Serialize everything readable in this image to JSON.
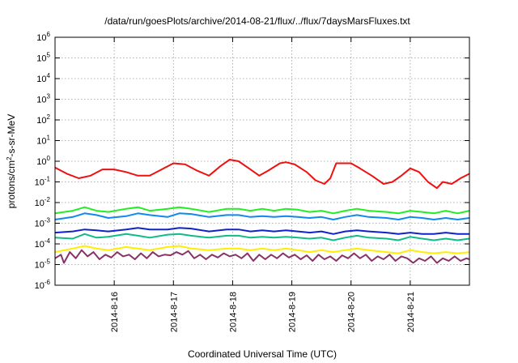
{
  "chart_data": {
    "type": "line",
    "title": "/data/run/goesPlots/archive/2014-08-21/flux/../flux/7daysMarsFluxes.txt",
    "xlabel": "Coordinated Universal Time (UTC)",
    "ylabel": "protons/cm²-s-sr-MeV",
    "yscale": "log",
    "ylim": [
      1e-06,
      1000000.0
    ],
    "y_ticks": [
      {
        "base": "10",
        "exp": "-6"
      },
      {
        "base": "10",
        "exp": "-5"
      },
      {
        "base": "10",
        "exp": "-4"
      },
      {
        "base": "10",
        "exp": "-3"
      },
      {
        "base": "10",
        "exp": "-2"
      },
      {
        "base": "10",
        "exp": "-1"
      },
      {
        "base": "10",
        "exp": "0"
      },
      {
        "base": "10",
        "exp": "1"
      },
      {
        "base": "10",
        "exp": "2"
      },
      {
        "base": "10",
        "exp": "3"
      },
      {
        "base": "10",
        "exp": "4"
      },
      {
        "base": "10",
        "exp": "5"
      },
      {
        "base": "10",
        "exp": "6"
      }
    ],
    "xlim_days": [
      15.0,
      22.0
    ],
    "x_ticks": [
      {
        "day": 16,
        "label": "2014-8-16"
      },
      {
        "day": 17,
        "label": "2014-8-17"
      },
      {
        "day": 18,
        "label": "2014-8-18"
      },
      {
        "day": 19,
        "label": "2014-8-19"
      },
      {
        "day": 20,
        "label": "2014-8-20"
      },
      {
        "day": 21,
        "label": "2014-8-21"
      }
    ],
    "grid": true,
    "series": [
      {
        "color": "#ee1111",
        "points": [
          [
            15.0,
            0.5
          ],
          [
            15.2,
            0.25
          ],
          [
            15.4,
            0.15
          ],
          [
            15.6,
            0.2
          ],
          [
            15.8,
            0.4
          ],
          [
            16.0,
            0.4
          ],
          [
            16.2,
            0.3
          ],
          [
            16.4,
            0.2
          ],
          [
            16.6,
            0.2
          ],
          [
            16.8,
            0.4
          ],
          [
            17.0,
            0.8
          ],
          [
            17.2,
            0.7
          ],
          [
            17.4,
            0.35
          ],
          [
            17.6,
            0.2
          ],
          [
            17.8,
            0.6
          ],
          [
            17.95,
            1.2
          ],
          [
            18.1,
            1.0
          ],
          [
            18.3,
            0.4
          ],
          [
            18.45,
            0.2
          ],
          [
            18.6,
            0.35
          ],
          [
            18.8,
            0.8
          ],
          [
            18.9,
            0.9
          ],
          [
            19.05,
            0.7
          ],
          [
            19.25,
            0.3
          ],
          [
            19.4,
            0.12
          ],
          [
            19.55,
            0.08
          ],
          [
            19.65,
            0.15
          ],
          [
            19.75,
            0.8
          ],
          [
            20.0,
            0.8
          ],
          [
            20.15,
            0.45
          ],
          [
            20.35,
            0.2
          ],
          [
            20.55,
            0.08
          ],
          [
            20.7,
            0.1
          ],
          [
            20.85,
            0.2
          ],
          [
            21.0,
            0.45
          ],
          [
            21.15,
            0.3
          ],
          [
            21.3,
            0.1
          ],
          [
            21.45,
            0.05
          ],
          [
            21.55,
            0.1
          ],
          [
            21.7,
            0.08
          ],
          [
            21.85,
            0.15
          ],
          [
            22.0,
            0.25
          ]
        ]
      },
      {
        "color": "#22ee22",
        "points": [
          [
            15.0,
            0.003
          ],
          [
            15.3,
            0.004
          ],
          [
            15.5,
            0.006
          ],
          [
            15.7,
            0.004
          ],
          [
            15.9,
            0.0035
          ],
          [
            16.2,
            0.005
          ],
          [
            16.4,
            0.006
          ],
          [
            16.6,
            0.004
          ],
          [
            16.9,
            0.005
          ],
          [
            17.1,
            0.006
          ],
          [
            17.3,
            0.005
          ],
          [
            17.6,
            0.0035
          ],
          [
            17.9,
            0.005
          ],
          [
            18.1,
            0.005
          ],
          [
            18.3,
            0.004
          ],
          [
            18.5,
            0.005
          ],
          [
            18.7,
            0.004
          ],
          [
            18.9,
            0.005
          ],
          [
            19.1,
            0.0045
          ],
          [
            19.3,
            0.0035
          ],
          [
            19.5,
            0.004
          ],
          [
            19.7,
            0.003
          ],
          [
            19.9,
            0.004
          ],
          [
            20.1,
            0.005
          ],
          [
            20.3,
            0.004
          ],
          [
            20.6,
            0.0035
          ],
          [
            20.8,
            0.003
          ],
          [
            21.0,
            0.004
          ],
          [
            21.2,
            0.0035
          ],
          [
            21.4,
            0.003
          ],
          [
            21.6,
            0.004
          ],
          [
            21.8,
            0.003
          ],
          [
            22.0,
            0.004
          ]
        ]
      },
      {
        "color": "#1188ee",
        "points": [
          [
            15.0,
            0.0015
          ],
          [
            15.3,
            0.002
          ],
          [
            15.5,
            0.003
          ],
          [
            15.7,
            0.0025
          ],
          [
            15.9,
            0.0018
          ],
          [
            16.2,
            0.0022
          ],
          [
            16.4,
            0.003
          ],
          [
            16.6,
            0.0025
          ],
          [
            16.9,
            0.002
          ],
          [
            17.1,
            0.003
          ],
          [
            17.3,
            0.0028
          ],
          [
            17.6,
            0.002
          ],
          [
            17.9,
            0.0025
          ],
          [
            18.1,
            0.0025
          ],
          [
            18.3,
            0.002
          ],
          [
            18.5,
            0.0022
          ],
          [
            18.7,
            0.002
          ],
          [
            18.9,
            0.0022
          ],
          [
            19.1,
            0.002
          ],
          [
            19.3,
            0.0018
          ],
          [
            19.5,
            0.002
          ],
          [
            19.7,
            0.0015
          ],
          [
            19.9,
            0.002
          ],
          [
            20.1,
            0.0025
          ],
          [
            20.3,
            0.002
          ],
          [
            20.6,
            0.0018
          ],
          [
            20.8,
            0.0015
          ],
          [
            21.0,
            0.002
          ],
          [
            21.2,
            0.0018
          ],
          [
            21.4,
            0.0015
          ],
          [
            21.6,
            0.0018
          ],
          [
            21.8,
            0.0015
          ],
          [
            22.0,
            0.0018
          ]
        ]
      },
      {
        "color": "#1122cc",
        "points": [
          [
            15.0,
            0.00035
          ],
          [
            15.3,
            0.0004
          ],
          [
            15.5,
            0.0005
          ],
          [
            15.7,
            0.00045
          ],
          [
            15.9,
            0.0004
          ],
          [
            16.2,
            0.0005
          ],
          [
            16.4,
            0.0006
          ],
          [
            16.6,
            0.0005
          ],
          [
            16.9,
            0.0005
          ],
          [
            17.1,
            0.0006
          ],
          [
            17.3,
            0.00055
          ],
          [
            17.6,
            0.0004
          ],
          [
            17.9,
            0.0005
          ],
          [
            18.1,
            0.0005
          ],
          [
            18.3,
            0.0004
          ],
          [
            18.5,
            0.00045
          ],
          [
            18.7,
            0.0004
          ],
          [
            18.9,
            0.00045
          ],
          [
            19.1,
            0.0004
          ],
          [
            19.3,
            0.00035
          ],
          [
            19.5,
            0.0004
          ],
          [
            19.7,
            0.0003
          ],
          [
            19.9,
            0.0004
          ],
          [
            20.1,
            0.00045
          ],
          [
            20.3,
            0.0004
          ],
          [
            20.6,
            0.00035
          ],
          [
            20.8,
            0.0003
          ],
          [
            21.0,
            0.00035
          ],
          [
            21.2,
            0.0003
          ],
          [
            21.4,
            0.0003
          ],
          [
            21.6,
            0.00035
          ],
          [
            21.8,
            0.0003
          ],
          [
            22.0,
            0.0003
          ]
        ]
      },
      {
        "color": "#11bb88",
        "points": [
          [
            15.0,
            0.0002
          ],
          [
            15.3,
            0.00018
          ],
          [
            15.5,
            0.0003
          ],
          [
            15.7,
            0.0002
          ],
          [
            15.9,
            0.00022
          ],
          [
            16.2,
            0.0003
          ],
          [
            16.4,
            0.00025
          ],
          [
            16.6,
            0.0002
          ],
          [
            16.9,
            0.00028
          ],
          [
            17.1,
            0.0003
          ],
          [
            17.3,
            0.00025
          ],
          [
            17.6,
            0.0002
          ],
          [
            17.9,
            0.00025
          ],
          [
            18.1,
            0.00025
          ],
          [
            18.3,
            0.0002
          ],
          [
            18.5,
            0.00022
          ],
          [
            18.7,
            0.0002
          ],
          [
            18.9,
            0.00022
          ],
          [
            19.1,
            0.0002
          ],
          [
            19.3,
            0.00018
          ],
          [
            19.5,
            0.0002
          ],
          [
            19.7,
            0.00015
          ],
          [
            19.9,
            0.0002
          ],
          [
            20.1,
            0.00025
          ],
          [
            20.3,
            0.0002
          ],
          [
            20.6,
            0.00018
          ],
          [
            20.8,
            0.00015
          ],
          [
            21.0,
            0.00022
          ],
          [
            21.2,
            0.00018
          ],
          [
            21.4,
            0.00015
          ],
          [
            21.6,
            0.00018
          ],
          [
            21.8,
            0.00015
          ],
          [
            22.0,
            0.00018
          ]
        ]
      },
      {
        "color": "#ffee00",
        "points": [
          [
            15.0,
            4e-05
          ],
          [
            15.3,
            6e-05
          ],
          [
            15.5,
            8e-05
          ],
          [
            15.7,
            6e-05
          ],
          [
            15.9,
            5e-05
          ],
          [
            16.2,
            7e-05
          ],
          [
            16.4,
            6e-05
          ],
          [
            16.6,
            5e-05
          ],
          [
            16.9,
            7e-05
          ],
          [
            17.1,
            8e-05
          ],
          [
            17.3,
            6e-05
          ],
          [
            17.6,
            5e-05
          ],
          [
            17.9,
            6e-05
          ],
          [
            18.1,
            6e-05
          ],
          [
            18.3,
            5e-05
          ],
          [
            18.5,
            6e-05
          ],
          [
            18.7,
            5e-05
          ],
          [
            18.9,
            6e-05
          ],
          [
            19.1,
            5e-05
          ],
          [
            19.3,
            4e-05
          ],
          [
            19.5,
            5e-05
          ],
          [
            19.7,
            4e-05
          ],
          [
            19.9,
            5e-05
          ],
          [
            20.1,
            6e-05
          ],
          [
            20.3,
            5e-05
          ],
          [
            20.6,
            4e-05
          ],
          [
            20.8,
            3.5e-05
          ],
          [
            21.0,
            5e-05
          ],
          [
            21.2,
            4e-05
          ],
          [
            21.4,
            3.5e-05
          ],
          [
            21.6,
            4e-05
          ],
          [
            21.8,
            3.5e-05
          ],
          [
            22.0,
            4e-05
          ]
        ]
      },
      {
        "color": "#883366",
        "points": [
          [
            15.0,
            2e-05
          ],
          [
            15.1,
            3e-05
          ],
          [
            15.15,
            1.2e-05
          ],
          [
            15.25,
            4e-05
          ],
          [
            15.35,
            2e-05
          ],
          [
            15.45,
            5e-05
          ],
          [
            15.55,
            2.5e-05
          ],
          [
            15.65,
            4e-05
          ],
          [
            15.75,
            1.8e-05
          ],
          [
            15.85,
            3e-05
          ],
          [
            15.95,
            2.2e-05
          ],
          [
            16.05,
            4e-05
          ],
          [
            16.15,
            2.5e-05
          ],
          [
            16.25,
            3e-05
          ],
          [
            16.35,
            1.8e-05
          ],
          [
            16.45,
            3.5e-05
          ],
          [
            16.55,
            2e-05
          ],
          [
            16.65,
            4e-05
          ],
          [
            16.75,
            2.5e-05
          ],
          [
            16.85,
            3e-05
          ],
          [
            16.95,
            2.8e-05
          ],
          [
            17.05,
            4e-05
          ],
          [
            17.15,
            3e-05
          ],
          [
            17.25,
            4.5e-05
          ],
          [
            17.35,
            2e-05
          ],
          [
            17.45,
            3e-05
          ],
          [
            17.55,
            1.8e-05
          ],
          [
            17.65,
            3e-05
          ],
          [
            17.75,
            2.2e-05
          ],
          [
            17.85,
            3.5e-05
          ],
          [
            17.95,
            2.5e-05
          ],
          [
            18.05,
            3e-05
          ],
          [
            18.15,
            2e-05
          ],
          [
            18.25,
            3.5e-05
          ],
          [
            18.35,
            1.5e-05
          ],
          [
            18.45,
            3e-05
          ],
          [
            18.55,
            1.8e-05
          ],
          [
            18.65,
            3e-05
          ],
          [
            18.75,
            2e-05
          ],
          [
            18.85,
            3.5e-05
          ],
          [
            18.95,
            2.2e-05
          ],
          [
            19.05,
            3e-05
          ],
          [
            19.15,
            1.8e-05
          ],
          [
            19.25,
            2.8e-05
          ],
          [
            19.35,
            1.5e-05
          ],
          [
            19.45,
            3e-05
          ],
          [
            19.55,
            1.8e-05
          ],
          [
            19.65,
            2.5e-05
          ],
          [
            19.75,
            1.5e-05
          ],
          [
            19.85,
            2.8e-05
          ],
          [
            19.95,
            2e-05
          ],
          [
            20.05,
            3.5e-05
          ],
          [
            20.15,
            2e-05
          ],
          [
            20.25,
            3e-05
          ],
          [
            20.35,
            1.5e-05
          ],
          [
            20.45,
            2.5e-05
          ],
          [
            20.55,
            1.8e-05
          ],
          [
            20.65,
            3e-05
          ],
          [
            20.75,
            1.5e-05
          ],
          [
            20.85,
            2.5e-05
          ],
          [
            20.95,
            2e-05
          ],
          [
            21.05,
            1.2e-05
          ],
          [
            21.15,
            2e-05
          ],
          [
            21.25,
            1.5e-05
          ],
          [
            21.35,
            2.5e-05
          ],
          [
            21.45,
            1.2e-05
          ],
          [
            21.55,
            2e-05
          ],
          [
            21.65,
            1.5e-05
          ],
          [
            21.75,
            2.5e-05
          ],
          [
            21.85,
            1.5e-05
          ],
          [
            21.95,
            2e-05
          ],
          [
            22.0,
            1.8e-05
          ]
        ]
      }
    ]
  }
}
